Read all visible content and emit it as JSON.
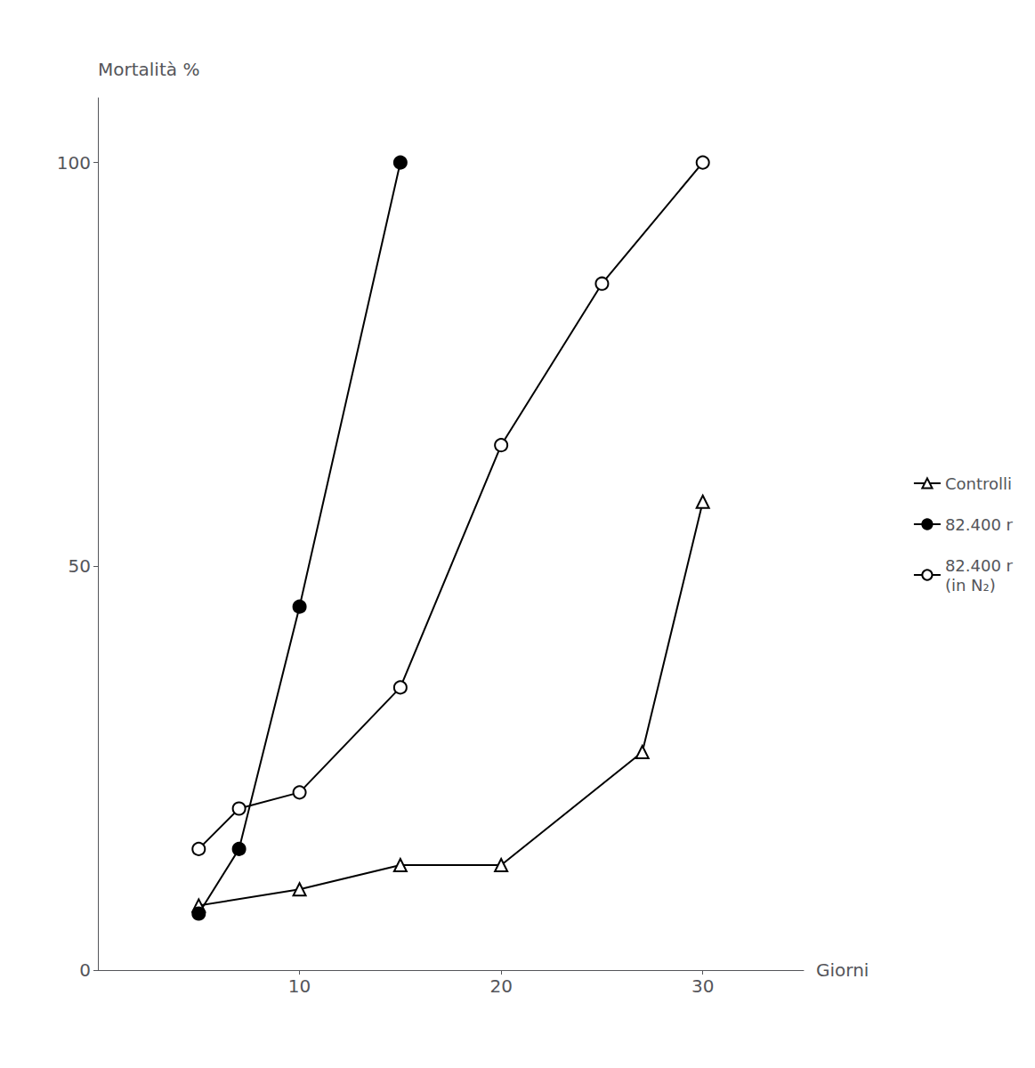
{
  "chart_data": {
    "type": "line",
    "y_label": "Mortalità %",
    "x_label": "Giorni",
    "xlim": [
      0,
      35
    ],
    "xticks": [
      10,
      20,
      30
    ],
    "ylim": [
      0,
      108
    ],
    "yticks": [
      0,
      50,
      100
    ],
    "grid": false,
    "legend": "right",
    "series": [
      {
        "name": "Controlli",
        "color": "black",
        "marker": "open triangle",
        "x": [
          5,
          10,
          15,
          20,
          27,
          30
        ],
        "values": [
          8,
          10,
          13,
          13,
          27,
          58
        ]
      },
      {
        "name": "82.400 r",
        "color": "black",
        "marker": "filled circle",
        "x": [
          5,
          7,
          10,
          15
        ],
        "values": [
          7,
          15,
          45,
          100
        ]
      },
      {
        "name": "82.400 r\n(in N₂)",
        "color": "black",
        "marker": "open circle",
        "x": [
          5,
          7,
          10,
          15,
          20,
          25,
          30
        ],
        "values": [
          15,
          20,
          22,
          35,
          65,
          85,
          100
        ]
      }
    ]
  }
}
